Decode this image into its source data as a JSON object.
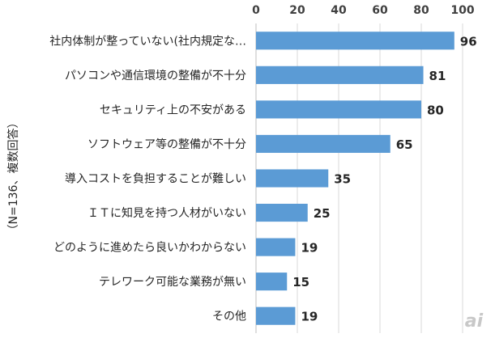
{
  "chart_data": {
    "type": "bar",
    "orientation": "horizontal",
    "categories": [
      "社内体制が整っていない(社内規定な…",
      "パソコンや通信環境の整備が不十分",
      "セキュリティ上の不安がある",
      "ソフトウェア等の整備が不十分",
      "導入コストを負担することが難しい",
      "ＩＴに知見を持つ人材がいない",
      "どのように進めたら良いかわからない",
      "テレワーク可能な業務が無い",
      "その他"
    ],
    "values": [
      96,
      81,
      80,
      65,
      35,
      25,
      19,
      15,
      19
    ],
    "xlim": [
      0,
      100
    ],
    "xticks": [
      0,
      20,
      40,
      60,
      80,
      100
    ],
    "x_axis_position": "top",
    "ylabel": "（N=136、複数回答）",
    "bar_color": "#5b9bd5",
    "grid": true
  },
  "watermark": "ai"
}
